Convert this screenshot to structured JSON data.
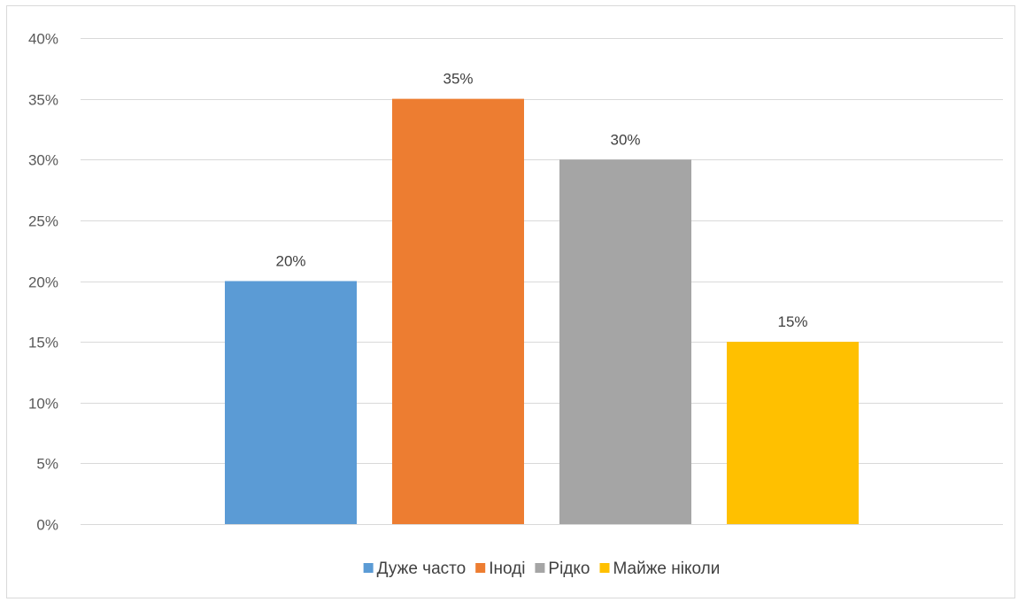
{
  "chart_data": {
    "type": "bar",
    "title": "",
    "xlabel": "",
    "ylabel": "",
    "ylim": [
      0,
      40
    ],
    "ytick_step": 5,
    "y_tick_format": "percent",
    "grid": true,
    "legend_position": "bottom",
    "series": [
      {
        "name": "Дуже часто",
        "value": 20,
        "label": "20%",
        "color": "#5b9bd5"
      },
      {
        "name": "Іноді",
        "value": 35,
        "label": "35%",
        "color": "#ed7d31"
      },
      {
        "name": "Рідко",
        "value": 30,
        "label": "30%",
        "color": "#a5a5a5"
      },
      {
        "name": "Майже ніколи",
        "value": 15,
        "label": "15%",
        "color": "#ffc000"
      }
    ]
  }
}
